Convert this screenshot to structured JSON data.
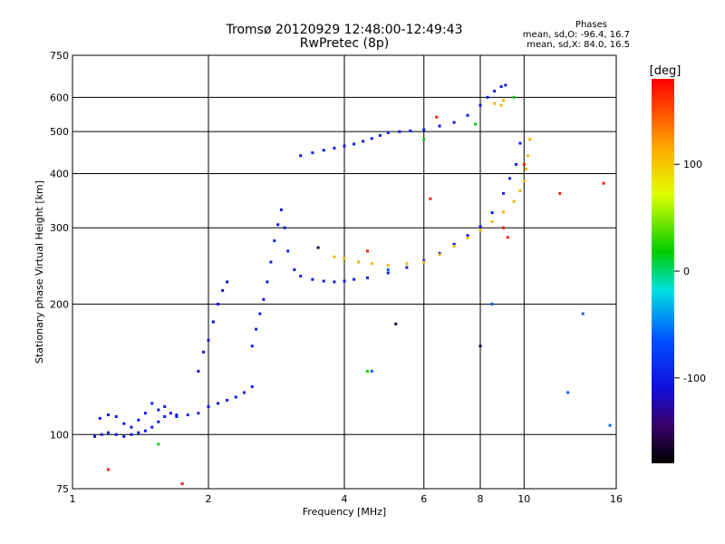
{
  "chart_data": {
    "type": "scatter",
    "title": "Tromsø 20120929 12:48:00-12:49:43",
    "subtitle": "RwPretec (8p)",
    "xlabel": "Frequency [MHz]",
    "ylabel": "Stationary phase Virtual Height [km]",
    "xscale": "log",
    "yscale": "log",
    "xlim": [
      1,
      16
    ],
    "ylim": [
      75,
      750
    ],
    "xticks": [
      1,
      2,
      4,
      6,
      8,
      10,
      16
    ],
    "yticks": [
      75,
      100,
      200,
      300,
      400,
      500,
      600,
      750
    ],
    "grid_x": [
      2,
      4,
      6,
      8,
      10
    ],
    "grid_y": [
      100,
      200,
      300,
      400,
      500,
      600
    ],
    "grid": true,
    "legend": {
      "heading": "Phases",
      "lines": [
        "mean, sd,O: -96.4, 16.7",
        "mean, sd,X: 84.0, 16.5"
      ]
    },
    "colorbar": {
      "label": "[deg]",
      "range": [
        -180,
        180
      ],
      "ticks": [
        100,
        0,
        -100
      ],
      "placement": "right"
    },
    "series": [
      {
        "phase": -100,
        "x": [
          1.12,
          1.16,
          1.2,
          1.25,
          1.3,
          1.35,
          1.4,
          1.45,
          1.5,
          1.55,
          1.6,
          1.7,
          1.8,
          1.9,
          2.0,
          2.1,
          2.2,
          2.3,
          2.4,
          2.5
        ],
        "y": [
          99,
          100,
          101,
          100,
          99,
          100,
          101,
          102,
          104,
          107,
          110,
          110,
          111,
          112,
          116,
          118,
          120,
          122,
          125,
          129
        ]
      },
      {
        "phase": -100,
        "x": [
          1.15,
          1.2,
          1.25,
          1.3,
          1.35,
          1.4,
          1.45,
          1.5,
          1.55,
          1.6,
          1.65,
          1.7
        ],
        "y": [
          109,
          111,
          110,
          106,
          104,
          108,
          112,
          118,
          114,
          116,
          112,
          111
        ]
      },
      {
        "phase": -110,
        "x": [
          1.9,
          1.95,
          2.0,
          2.05,
          2.1,
          2.15,
          2.2
        ],
        "y": [
          140,
          155,
          165,
          182,
          200,
          215,
          225
        ]
      },
      {
        "phase": -100,
        "x": [
          2.5,
          2.55,
          2.6,
          2.65,
          2.7,
          2.75,
          2.8,
          2.85,
          2.9,
          2.95,
          3.0,
          3.1,
          3.2,
          3.4,
          3.6,
          3.8,
          4.0,
          4.2,
          4.5,
          5.0,
          5.5,
          6.0,
          6.5,
          7.0,
          7.5,
          8.0,
          8.5,
          9.0,
          9.3,
          9.6,
          9.8
        ],
        "y": [
          160,
          175,
          190,
          205,
          225,
          250,
          280,
          305,
          330,
          300,
          265,
          240,
          232,
          228,
          226,
          225,
          226,
          228,
          230,
          236,
          243,
          252,
          262,
          275,
          288,
          302,
          325,
          360,
          390,
          420,
          470
        ]
      },
      {
        "phase": 110,
        "x": [
          3.8,
          4.0,
          4.3,
          4.6,
          5.0,
          5.5,
          6.0,
          6.5,
          7.0,
          7.5,
          8.0,
          8.5,
          9.0,
          9.5,
          9.8,
          10.0,
          10.1,
          10.2,
          10.3
        ],
        "y": [
          257,
          255,
          250,
          248,
          246,
          248,
          250,
          260,
          272,
          284,
          296,
          310,
          326,
          345,
          365,
          385,
          410,
          440,
          480
        ]
      },
      {
        "phase": -100,
        "x": [
          3.2,
          3.4,
          3.6,
          3.8,
          4.0,
          4.2,
          4.4,
          4.6,
          4.8,
          5.0,
          5.3,
          5.6,
          6.0,
          6.5,
          7.0,
          7.5,
          8.0,
          8.3,
          8.6,
          8.9,
          9.1
        ],
        "y": [
          440,
          447,
          453,
          458,
          463,
          468,
          475,
          482,
          490,
          497,
          500,
          502,
          505,
          515,
          525,
          545,
          575,
          600,
          620,
          635,
          640
        ]
      },
      {
        "phase": 110,
        "x": [
          8.6,
          8.9,
          9.0
        ],
        "y": [
          580,
          575,
          590
        ]
      },
      {
        "phase": 170,
        "x": [
          1.2,
          1.75,
          4.5,
          6.2,
          6.4,
          9.0,
          9.2,
          10.0,
          12.0,
          15.0
        ],
        "y": [
          83,
          77,
          265,
          350,
          540,
          300,
          285,
          420,
          360,
          380
        ]
      },
      {
        "phase": 20,
        "x": [
          1.55,
          4.5,
          6.0,
          7.8,
          9.5
        ],
        "y": [
          95,
          140,
          480,
          520,
          600
        ]
      },
      {
        "phase": -60,
        "x": [
          4.6,
          5.0,
          8.5,
          12.5,
          13.5,
          15.5
        ],
        "y": [
          140,
          240,
          200,
          125,
          190,
          105
        ]
      },
      {
        "phase": -160,
        "x": [
          3.5,
          5.2,
          8.0
        ],
        "y": [
          270,
          180,
          160
        ]
      }
    ]
  }
}
